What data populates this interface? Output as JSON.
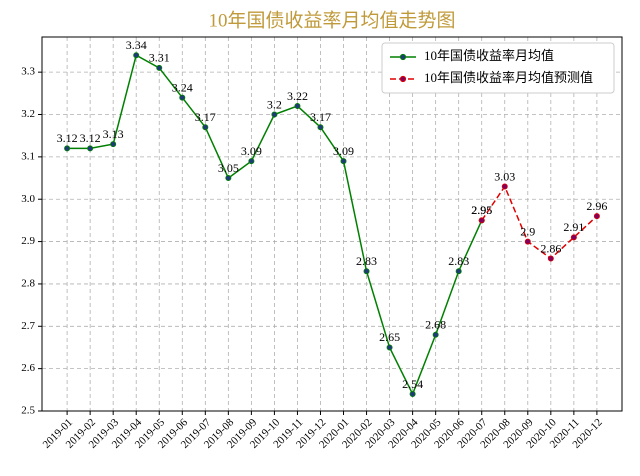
{
  "chart_data": {
    "type": "line",
    "title": "10年国债收益率月均值走势图",
    "categories": [
      "2019-01",
      "2019-02",
      "2019-03",
      "2019-04",
      "2019-05",
      "2019-06",
      "2019-07",
      "2019-08",
      "2019-09",
      "2019-10",
      "2019-11",
      "2019-12",
      "2020-01",
      "2020-02",
      "2020-03",
      "2020-04",
      "2020-05",
      "2020-06",
      "2020-07",
      "2020-08",
      "2020-09",
      "2020-10",
      "2020-11",
      "2020-12"
    ],
    "series": [
      {
        "name": "10年国债收益率月均值",
        "color": "#008000",
        "marker_color": "#1f3a7a",
        "linestyle": "solid",
        "values": [
          3.12,
          3.12,
          3.13,
          3.34,
          3.31,
          3.24,
          3.17,
          3.05,
          3.09,
          3.2,
          3.22,
          3.17,
          3.09,
          2.83,
          2.65,
          2.54,
          2.68,
          2.83,
          2.95,
          null,
          null,
          null,
          null,
          null
        ]
      },
      {
        "name": "10年国债收益率月均值预测值",
        "color": "#e00000",
        "marker_color": "#800060",
        "linestyle": "dashed",
        "values": [
          null,
          null,
          null,
          null,
          null,
          null,
          null,
          null,
          null,
          null,
          null,
          null,
          null,
          null,
          null,
          null,
          null,
          null,
          2.95,
          3.03,
          2.9,
          2.86,
          2.91,
          2.96
        ]
      }
    ],
    "ylim": [
      2.5,
      3.383
    ],
    "yticks": [
      2.5,
      2.6,
      2.7,
      2.8,
      2.9,
      {
        "value": 3,
        "label": "3.0"
      },
      3.1,
      3.2,
      3.3
    ],
    "grid": true,
    "legend": "upper right",
    "title_color": "#c09a3a"
  }
}
